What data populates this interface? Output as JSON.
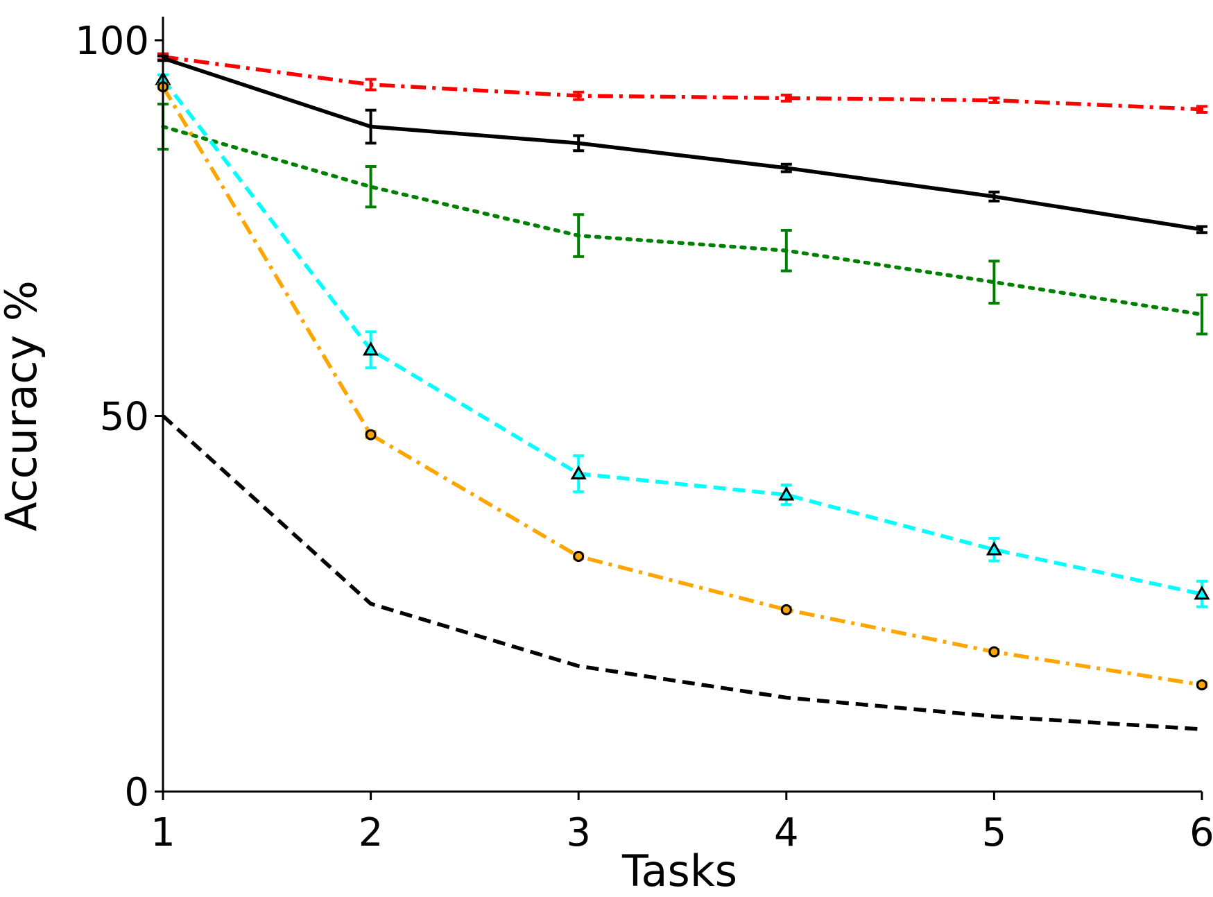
{
  "chart_data": {
    "type": "line",
    "xlabel": "Tasks",
    "ylabel": "Accuracy %",
    "xlim": [
      1,
      6
    ],
    "ylim": [
      0,
      100
    ],
    "x_ticks": [
      "1",
      "2",
      "3",
      "4",
      "5",
      "6"
    ],
    "y_ticks": [
      "0",
      "50",
      "100"
    ],
    "grid": false,
    "legend": "none",
    "x": [
      1,
      2,
      3,
      4,
      5,
      6
    ],
    "series": [
      {
        "color": "#ff0000",
        "dash": "dash-dot",
        "marker": "none",
        "values": [
          97.8,
          94.1,
          92.6,
          92.3,
          92.0,
          90.8
        ],
        "errors": [
          0.4,
          0.7,
          0.5,
          0.4,
          0.3,
          0.4
        ]
      },
      {
        "color": "#000000",
        "dash": "solid",
        "marker": "none",
        "values": [
          97.6,
          88.5,
          86.3,
          83.0,
          79.2,
          74.8
        ],
        "errors": [
          0.3,
          2.2,
          1.0,
          0.5,
          0.6,
          0.4
        ]
      },
      {
        "color": "#008000",
        "dash": "dotted",
        "marker": "none",
        "values": [
          88.5,
          80.5,
          74.0,
          72.0,
          67.8,
          63.5
        ],
        "errors": [
          3.0,
          2.7,
          2.8,
          2.7,
          2.8,
          2.6
        ]
      },
      {
        "color": "#00ffff",
        "dash": "dashed",
        "marker": "triangle",
        "values": [
          94.8,
          58.8,
          42.3,
          39.5,
          32.2,
          26.3
        ],
        "errors": [
          0.6,
          2.4,
          2.4,
          1.3,
          1.5,
          1.7
        ]
      },
      {
        "color": "#ffa500",
        "dash": "dash-dot",
        "marker": "circle",
        "values": [
          93.8,
          47.5,
          31.3,
          24.2,
          18.6,
          14.2
        ],
        "errors": [
          0.3,
          0.4,
          0.3,
          0.3,
          0.3,
          0.3
        ]
      },
      {
        "color": "#000000",
        "dash": "dashed",
        "marker": "none",
        "values": [
          50.0,
          25.0,
          16.7,
          12.5,
          10.0,
          8.3
        ],
        "errors": [
          0,
          0,
          0,
          0,
          0,
          0
        ]
      }
    ]
  }
}
